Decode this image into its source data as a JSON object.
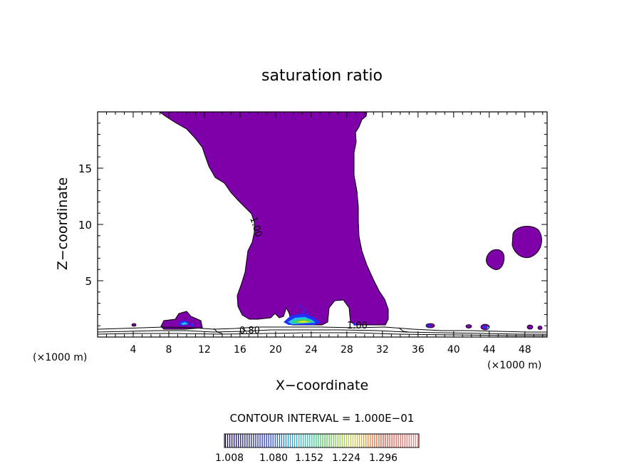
{
  "chart_data": {
    "type": "contour",
    "title": "saturation ratio",
    "xlabel": "X−coordinate",
    "ylabel": "Z−coordinate",
    "x_unit_left": "(×1000 m)",
    "x_unit_right": "(×1000 m)",
    "xlim": [
      0,
      50.5
    ],
    "ylim": [
      0,
      20
    ],
    "x_ticks": [
      4,
      8,
      12,
      16,
      20,
      24,
      28,
      32,
      36,
      40,
      44,
      48
    ],
    "y_ticks": [
      5,
      10,
      15
    ],
    "contour_interval_text": "CONTOUR INTERVAL = 1.000E−01",
    "contour_labels": [
      {
        "text": "1.00",
        "x": 17.3,
        "z": 11.2
      },
      {
        "text": "0.80",
        "x": 17.3,
        "z": 0.7
      },
      {
        "text": "1.00",
        "x": 29.6,
        "z": 1.0
      }
    ],
    "colorbar": {
      "tick_labels": [
        "1.008",
        "1.080",
        "1.152",
        "1.224",
        "1.296"
      ],
      "low_color": "#1a0c3c",
      "high_color": "#e08080"
    },
    "colors": {
      "saturated": "#7d00a8",
      "blue": "#2030ff",
      "cyan": "#20c8e0",
      "green": "#40d060",
      "yellow": "#f0e020"
    }
  }
}
